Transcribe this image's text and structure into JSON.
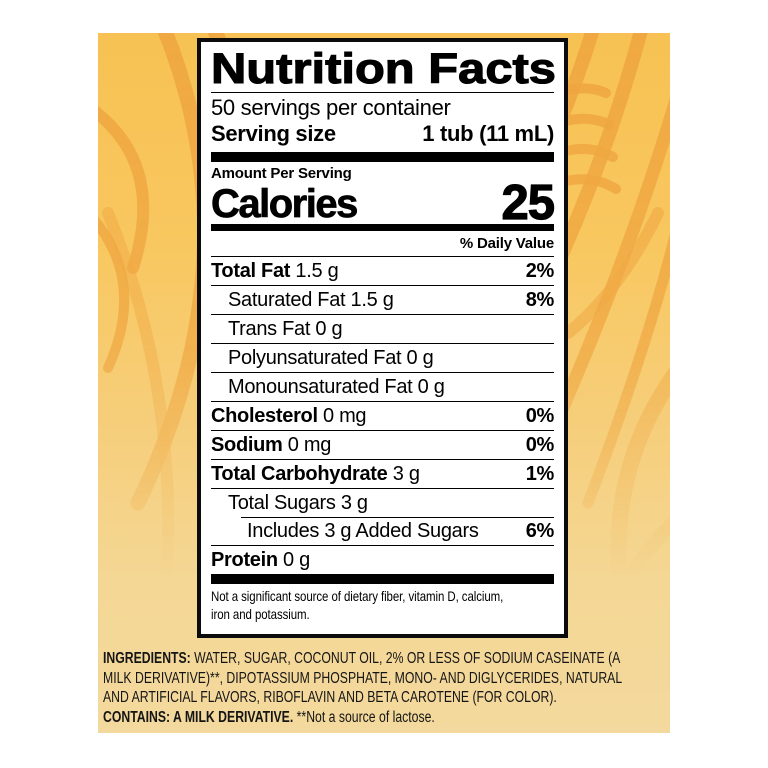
{
  "colors": {
    "background_top": "#f7c253",
    "background_bottom": "#f4d99e",
    "swirl": "#efa440",
    "label_border": "#0b0b0b",
    "label_bg": "#ffffff",
    "text": "#000000"
  },
  "label": {
    "title": "Nutrition Facts",
    "servings_per_container": "50 servings per container",
    "serving_size_label": "Serving size",
    "serving_size_value": "1 tub (11 mL)",
    "amount_per_serving": "Amount Per Serving",
    "calories_label": "Calories",
    "calories_value": "25",
    "daily_value_header": "% Daily Value",
    "rows": [
      {
        "name": "Total Fat",
        "amount": "1.5 g",
        "dv": "2%",
        "bold": true,
        "indent": 0
      },
      {
        "name": "Saturated Fat",
        "amount": "1.5 g",
        "dv": "8%",
        "bold": false,
        "indent": 1
      },
      {
        "name": "Trans Fat",
        "amount": "0 g",
        "dv": "",
        "bold": false,
        "indent": 1
      },
      {
        "name": "Polyunsaturated Fat",
        "amount": "0 g",
        "dv": "",
        "bold": false,
        "indent": 1
      },
      {
        "name": "Monounsaturated Fat",
        "amount": "0 g",
        "dv": "",
        "bold": false,
        "indent": 1
      },
      {
        "name": "Cholesterol",
        "amount": "0 mg",
        "dv": "0%",
        "bold": true,
        "indent": 0
      },
      {
        "name": "Sodium",
        "amount": "0 mg",
        "dv": "0%",
        "bold": true,
        "indent": 0
      },
      {
        "name": "Total Carbohydrate",
        "amount": "3 g",
        "dv": "1%",
        "bold": true,
        "indent": 0
      },
      {
        "name": "Total Sugars",
        "amount": "3 g",
        "dv": "",
        "bold": false,
        "indent": 1
      },
      {
        "name": "Includes 3 g Added Sugars",
        "amount": "",
        "dv": "6%",
        "bold": false,
        "indent": 2,
        "sep_indent": true
      },
      {
        "name": "Protein",
        "amount": "0 g",
        "dv": "",
        "bold": true,
        "indent": 0
      }
    ],
    "footnote_lines": [
      "Not a significant source of dietary fiber, vitamin D, calcium,",
      "iron and potassium."
    ]
  },
  "ingredients": {
    "label": "INGREDIENTS:",
    "lines": [
      "WATER, SUGAR, COCONUT OIL, 2% OR LESS OF SODIUM CASEINATE (A",
      "MILK DERIVATIVE)**, DIPOTASSIUM PHOSPHATE, MONO- AND DIGLYCERIDES, NATURAL",
      "AND ARTIFICIAL FLAVORS, RIBOFLAVIN AND BETA CAROTENE (FOR COLOR)."
    ],
    "contains_label": "CONTAINS: A MILK DERIVATIVE.",
    "contains_note": "**Not a source of lactose."
  }
}
